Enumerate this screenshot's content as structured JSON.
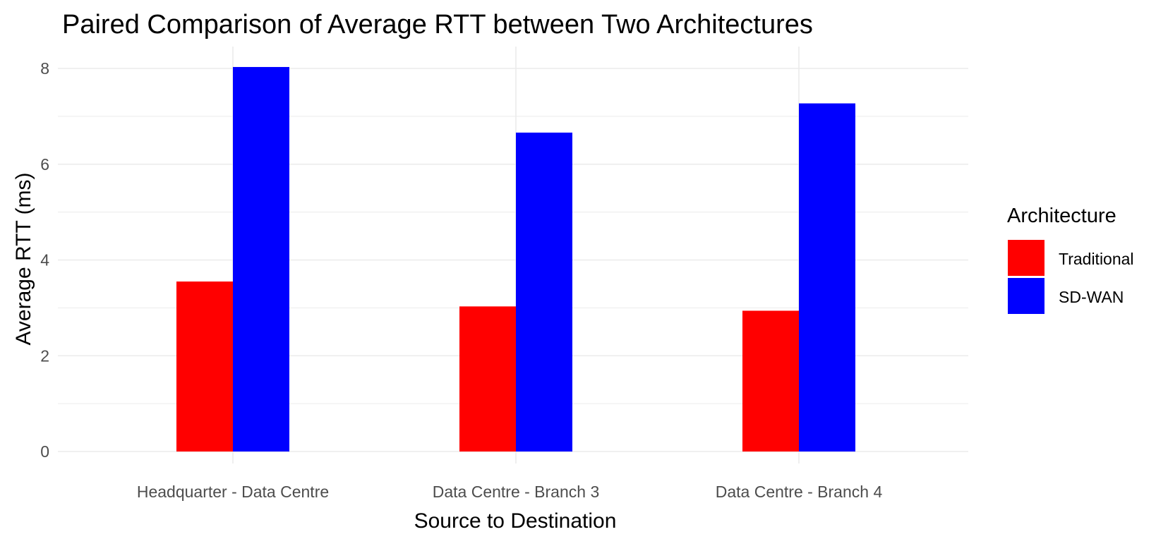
{
  "chart_data": {
    "type": "bar",
    "title": "Paired Comparison of Average RTT between Two Architectures",
    "xlabel": "Source to Destination",
    "ylabel": "Average RTT (ms)",
    "categories": [
      "Headquarter - Data Centre",
      "Data Centre - Branch 3",
      "Data Centre - Branch 4"
    ],
    "series": [
      {
        "name": "Traditional",
        "color": "#ff0000",
        "values": [
          3.55,
          3.03,
          2.94
        ]
      },
      {
        "name": "SD-WAN",
        "color": "#0000ff",
        "values": [
          8.03,
          6.66,
          7.27
        ]
      }
    ],
    "ylim": [
      0,
      8.25
    ],
    "yticks": [
      0,
      2,
      4,
      6,
      8
    ],
    "ytick_labels": [
      "0",
      "2",
      "4",
      "6",
      "8"
    ],
    "grid": true,
    "legend": {
      "title": "Architecture",
      "position": "right"
    }
  }
}
